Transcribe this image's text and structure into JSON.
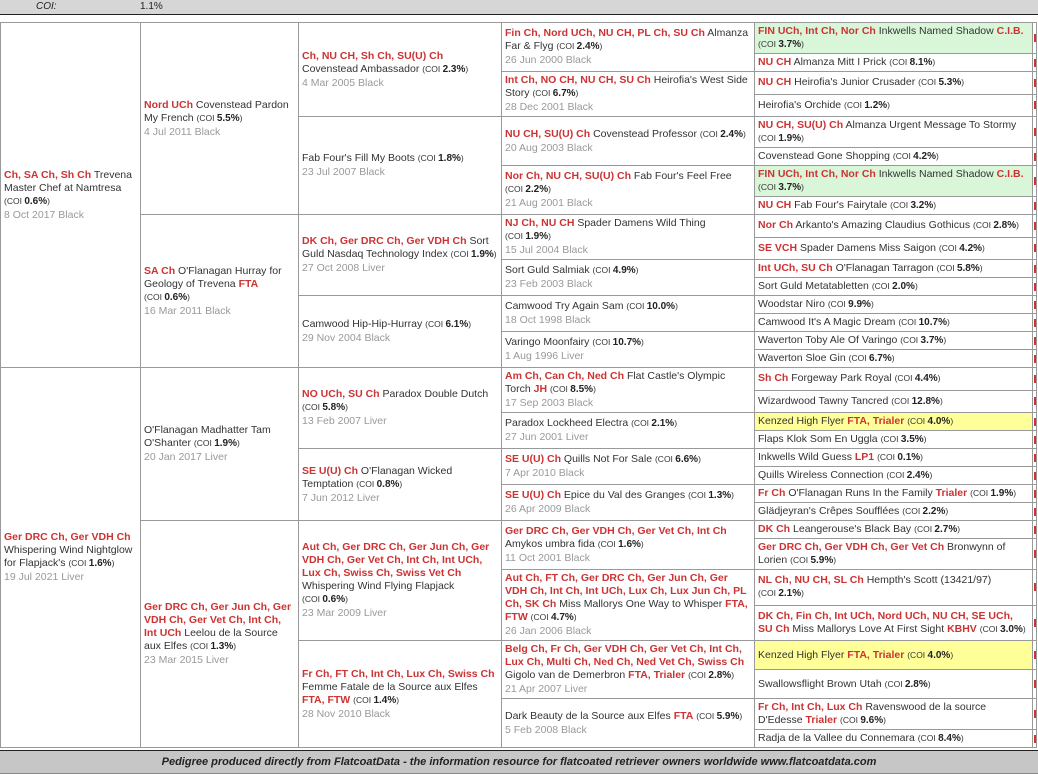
{
  "header": {
    "coi_label": "COI:",
    "coi_value": "1.1%"
  },
  "labels": {
    "coi_open": "(COI ",
    "coi_close": ")"
  },
  "footer": {
    "text": "Pedigree produced directly from FlatcoatData - the information resource for flatcoated retriever owners worldwide www.flatcoatdata.com"
  },
  "colors": {
    "title_red": "#cc3333",
    "name_text": "#333333",
    "date_text": "#999999",
    "highlight_green": "#d9f6d9",
    "highlight_yellow": "#ffff99",
    "bar_gray": "#d6d6d6"
  },
  "pedigree": {
    "gen1": [
      {
        "titles": "Ch, SA Ch, Sh Ch",
        "name": "Trevena Master Chef at Namtresa",
        "suffix": "",
        "coi": "0.6%",
        "date": "8 Oct 2017 Black",
        "hl": ""
      },
      {
        "titles": "Ger DRC Ch, Ger VDH Ch",
        "name": "Whispering Wind Nightglow for Flapjack's",
        "suffix": "",
        "coi": "1.6%",
        "date": "19 Jul 2021 Liver",
        "hl": ""
      }
    ],
    "gen2": [
      {
        "titles": "Nord UCh",
        "name": "Covenstead Pardon My French",
        "suffix": "",
        "coi": "5.5%",
        "date": "4 Jul 2011 Black",
        "hl": ""
      },
      {
        "titles": "SA Ch",
        "name": "O'Flanagan Hurray for Geology of Trevena",
        "suffix": "FTA",
        "coi": "0.6%",
        "date": "16 Mar 2011 Black",
        "hl": ""
      },
      {
        "titles": "",
        "name": "O'Flanagan Madhatter Tam O'Shanter",
        "suffix": "",
        "coi": "1.9%",
        "date": "20 Jan 2017 Liver",
        "hl": ""
      },
      {
        "titles": "Ger DRC Ch, Ger Jun Ch, Ger VDH Ch, Ger Vet Ch, Int Ch, Int UCh",
        "name": "Leelou de la Source aux Elfes",
        "suffix": "",
        "coi": "1.3%",
        "date": "23 Mar 2015 Liver",
        "hl": ""
      }
    ],
    "gen3": [
      {
        "titles": "Ch, NU CH, Sh Ch, SU(U) Ch",
        "name": "Covenstead Ambassador",
        "suffix": "",
        "coi": "2.3%",
        "date": "4 Mar 2005 Black",
        "hl": ""
      },
      {
        "titles": "",
        "name": "Fab Four's Fill My Boots",
        "suffix": "",
        "coi": "1.8%",
        "date": "23 Jul 2007 Black",
        "hl": ""
      },
      {
        "titles": "DK Ch, Ger DRC Ch, Ger VDH Ch",
        "name": "Sort Guld Nasdaq Technology Index",
        "suffix": "",
        "coi": "1.9%",
        "date": "27 Oct 2008 Liver",
        "hl": ""
      },
      {
        "titles": "",
        "name": "Camwood Hip-Hip-Hurray",
        "suffix": "",
        "coi": "6.1%",
        "date": "29 Nov 2004 Black",
        "hl": ""
      },
      {
        "titles": "NO UCh, SU Ch",
        "name": "Paradox Double Dutch",
        "suffix": "",
        "coi": "5.8%",
        "date": "13 Feb 2007 Liver",
        "hl": ""
      },
      {
        "titles": "SE U(U) Ch",
        "name": "O'Flanagan Wicked Temptation",
        "suffix": "",
        "coi": "0.8%",
        "date": "7 Jun 2012 Liver",
        "hl": ""
      },
      {
        "titles": "Aut Ch, Ger DRC Ch, Ger Jun Ch, Ger VDH Ch, Ger Vet Ch, Int Ch, Int UCh, Lux Ch, Swiss Ch, Swiss Vet Ch",
        "name": "Whispering Wind Flying Flapjack",
        "suffix": "",
        "coi": "0.6%",
        "date": "23 Mar 2009 Liver",
        "hl": ""
      },
      {
        "titles": "Fr Ch, FT Ch, Int Ch, Lux Ch, Swiss Ch",
        "name": "Femme Fatale de la Source aux Elfes",
        "suffix": "FTA, FTW",
        "coi": "1.4%",
        "date": "28 Nov 2010 Black",
        "hl": ""
      }
    ],
    "gen4": [
      {
        "titles": "Fin Ch, Nord UCh, NU CH, PL Ch, SU Ch",
        "name": "Almanza Far & Flyg",
        "suffix": "",
        "coi": "2.4%",
        "date": "26 Jun 2000 Black",
        "hl": ""
      },
      {
        "titles": "Int Ch, NO CH, NU CH, SU Ch",
        "name": "Heirofia's West Side Story",
        "suffix": "",
        "coi": "6.7%",
        "date": "28 Dec 2001 Black",
        "hl": ""
      },
      {
        "titles": "NU CH, SU(U) Ch",
        "name": "Covenstead Professor",
        "suffix": "",
        "coi": "2.4%",
        "date": "20 Aug 2003 Black",
        "hl": ""
      },
      {
        "titles": "Nor Ch, NU CH, SU(U) Ch",
        "name": "Fab Four's Feel Free",
        "suffix": "",
        "coi": "2.2%",
        "date": "21 Aug 2001 Black",
        "hl": ""
      },
      {
        "titles": "NJ Ch, NU CH",
        "name": "Spader Damens Wild Thing",
        "suffix": "",
        "coi": "1.9%",
        "date": "15 Jul 2004 Black",
        "hl": ""
      },
      {
        "titles": "",
        "name": "Sort Guld Salmiak",
        "suffix": "",
        "coi": "4.9%",
        "date": "23 Feb 2003 Black",
        "hl": ""
      },
      {
        "titles": "",
        "name": "Camwood Try Again Sam",
        "suffix": "",
        "coi": "10.0%",
        "date": "18 Oct 1998 Black",
        "hl": ""
      },
      {
        "titles": "",
        "name": "Varingo Moonfairy",
        "suffix": "",
        "coi": "10.7%",
        "date": "1 Aug 1996 Liver",
        "hl": ""
      },
      {
        "titles": "Am Ch, Can Ch, Ned Ch",
        "name": "Flat Castle's Olympic Torch",
        "suffix": "JH",
        "coi": "8.5%",
        "date": "17 Sep 2003 Black",
        "hl": ""
      },
      {
        "titles": "",
        "name": "Paradox Lockheed Electra",
        "suffix": "",
        "coi": "2.1%",
        "date": "27 Jun 2001 Liver",
        "hl": ""
      },
      {
        "titles": "SE U(U) Ch",
        "name": "Quills Not For Sale",
        "suffix": "",
        "coi": "6.6%",
        "date": "7 Apr 2010 Black",
        "hl": ""
      },
      {
        "titles": "SE U(U) Ch",
        "name": "Epice du Val des Granges",
        "suffix": "",
        "coi": "1.3%",
        "date": "26 Apr 2009 Black",
        "hl": ""
      },
      {
        "titles": "Ger DRC Ch, Ger VDH Ch, Ger Vet Ch, Int Ch",
        "name": "Amykos umbra fida",
        "suffix": "",
        "coi": "1.6%",
        "date": "11 Oct 2001 Black",
        "hl": ""
      },
      {
        "titles": "Aut Ch, FT Ch, Ger DRC Ch, Ger Jun Ch, Ger VDH Ch, Int Ch, Int UCh, Lux Ch, Lux Jun Ch, PL Ch, SK Ch",
        "name": "Miss Mallorys One Way to Whisper",
        "suffix": "FTA, FTW",
        "coi": "4.7%",
        "date": "26 Jan 2006 Black",
        "hl": ""
      },
      {
        "titles": "Belg Ch, Fr Ch, Ger VDH Ch, Ger Vet Ch, Int Ch, Lux Ch, Multi Ch, Ned Ch, Ned Vet Ch, Swiss Ch",
        "name": "Gigolo van de Demerbron",
        "suffix": "FTA, Trialer",
        "coi": "2.8%",
        "date": "21 Apr 2007 Liver",
        "hl": ""
      },
      {
        "titles": "",
        "name": "Dark Beauty de la Source aux Elfes",
        "suffix": "FTA",
        "coi": "5.9%",
        "date": "5 Feb 2008 Black",
        "hl": ""
      }
    ],
    "gen5": [
      {
        "titles": "FIN UCh, Int Ch, Nor Ch",
        "name": "Inkwells Named Shadow",
        "suffix": "C.I.B.",
        "coi": "3.7%",
        "date": "",
        "hl": "green"
      },
      {
        "titles": "NU CH",
        "name": "Almanza Mitt I Prick",
        "suffix": "",
        "coi": "8.1%",
        "date": "",
        "hl": ""
      },
      {
        "titles": "NU CH",
        "name": "Heirofia's Junior Crusader",
        "suffix": "",
        "coi": "5.3%",
        "date": "",
        "hl": ""
      },
      {
        "titles": "",
        "name": "Heirofia's Orchide",
        "suffix": "",
        "coi": "1.2%",
        "date": "",
        "hl": ""
      },
      {
        "titles": "NU CH, SU(U) Ch",
        "name": "Almanza Urgent Message To Stormy",
        "suffix": "",
        "coi": "1.9%",
        "date": "",
        "hl": ""
      },
      {
        "titles": "",
        "name": "Covenstead Gone Shopping",
        "suffix": "",
        "coi": "4.2%",
        "date": "",
        "hl": ""
      },
      {
        "titles": "FIN UCh, Int Ch, Nor Ch",
        "name": "Inkwells Named Shadow",
        "suffix": "C.I.B.",
        "coi": "3.7%",
        "date": "",
        "hl": "green"
      },
      {
        "titles": "NU CH",
        "name": "Fab Four's Fairytale",
        "suffix": "",
        "coi": "3.2%",
        "date": "",
        "hl": ""
      },
      {
        "titles": "Nor Ch",
        "name": "Arkanto's Amazing Claudius Gothicus",
        "suffix": "",
        "coi": "2.8%",
        "date": "",
        "hl": ""
      },
      {
        "titles": "SE VCH",
        "name": "Spader Damens Miss Saigon",
        "suffix": "",
        "coi": "4.2%",
        "date": "",
        "hl": ""
      },
      {
        "titles": "Int UCh, SU Ch",
        "name": "O'Flanagan Tarragon",
        "suffix": "",
        "coi": "5.8%",
        "date": "",
        "hl": ""
      },
      {
        "titles": "",
        "name": "Sort Guld Metatabletten",
        "suffix": "",
        "coi": "2.0%",
        "date": "",
        "hl": ""
      },
      {
        "titles": "",
        "name": "Woodstar Niro",
        "suffix": "",
        "coi": "9.9%",
        "date": "",
        "hl": ""
      },
      {
        "titles": "",
        "name": "Camwood It's A Magic Dream",
        "suffix": "",
        "coi": "10.7%",
        "date": "",
        "hl": ""
      },
      {
        "titles": "",
        "name": "Waverton Toby Ale Of Varingo",
        "suffix": "",
        "coi": "3.7%",
        "date": "",
        "hl": ""
      },
      {
        "titles": "",
        "name": "Waverton Sloe Gin",
        "suffix": "",
        "coi": "6.7%",
        "date": "",
        "hl": ""
      },
      {
        "titles": "Sh Ch",
        "name": "Forgeway Park Royal",
        "suffix": "",
        "coi": "4.4%",
        "date": "",
        "hl": ""
      },
      {
        "titles": "",
        "name": "Wizardwood Tawny Tancred",
        "suffix": "",
        "coi": "12.8%",
        "date": "",
        "hl": ""
      },
      {
        "titles": "",
        "name": "Kenzed High Flyer",
        "suffix": "FTA, Trialer",
        "coi": "4.0%",
        "date": "",
        "hl": "yellow"
      },
      {
        "titles": "",
        "name": "Flaps Klok Som En Uggla",
        "suffix": "",
        "coi": "3.5%",
        "date": "",
        "hl": ""
      },
      {
        "titles": "",
        "name": "Inkwells Wild Guess",
        "suffix": "LP1",
        "coi": "0.1%",
        "date": "",
        "hl": ""
      },
      {
        "titles": "",
        "name": "Quills Wireless Connection",
        "suffix": "",
        "coi": "2.4%",
        "date": "",
        "hl": ""
      },
      {
        "titles": "Fr Ch",
        "name": "O'Flanagan Runs In the Family",
        "suffix": "Trialer",
        "coi": "1.9%",
        "date": "",
        "hl": ""
      },
      {
        "titles": "",
        "name": "Glädjeyran's Crêpes Soufflées",
        "suffix": "",
        "coi": "2.2%",
        "date": "",
        "hl": ""
      },
      {
        "titles": "DK Ch",
        "name": "Leangerouse's Black Bay",
        "suffix": "",
        "coi": "2.7%",
        "date": "",
        "hl": ""
      },
      {
        "titles": "Ger DRC Ch, Ger VDH Ch, Ger Vet Ch",
        "name": "Bronwynn of Lorien",
        "suffix": "",
        "coi": "5.9%",
        "date": "",
        "hl": ""
      },
      {
        "titles": "NL Ch, NU CH, SL Ch",
        "name": "Hempth's Scott (13421/97)",
        "suffix": "",
        "coi": "2.1%",
        "date": "",
        "hl": ""
      },
      {
        "titles": "DK Ch, Fin Ch, Int UCh, Nord UCh, NU CH, SE UCh, SU Ch",
        "name": "Miss Mallorys Love At First Sight",
        "suffix": "KBHV",
        "coi": "3.0%",
        "date": "",
        "hl": ""
      },
      {
        "titles": "",
        "name": "Kenzed High Flyer",
        "suffix": "FTA, Trialer",
        "coi": "4.0%",
        "date": "",
        "hl": "yellow"
      },
      {
        "titles": "",
        "name": "Swallowsflight Brown Utah",
        "suffix": "",
        "coi": "2.8%",
        "date": "",
        "hl": ""
      },
      {
        "titles": "Fr Ch, Int Ch, Lux Ch",
        "name": "Ravenswood de la source D'Edesse",
        "suffix": "Trialer",
        "coi": "9.6%",
        "date": "",
        "hl": ""
      },
      {
        "titles": "",
        "name": "Radja de la Vallee du Connemara",
        "suffix": "",
        "coi": "8.4%",
        "date": "",
        "hl": ""
      }
    ]
  }
}
